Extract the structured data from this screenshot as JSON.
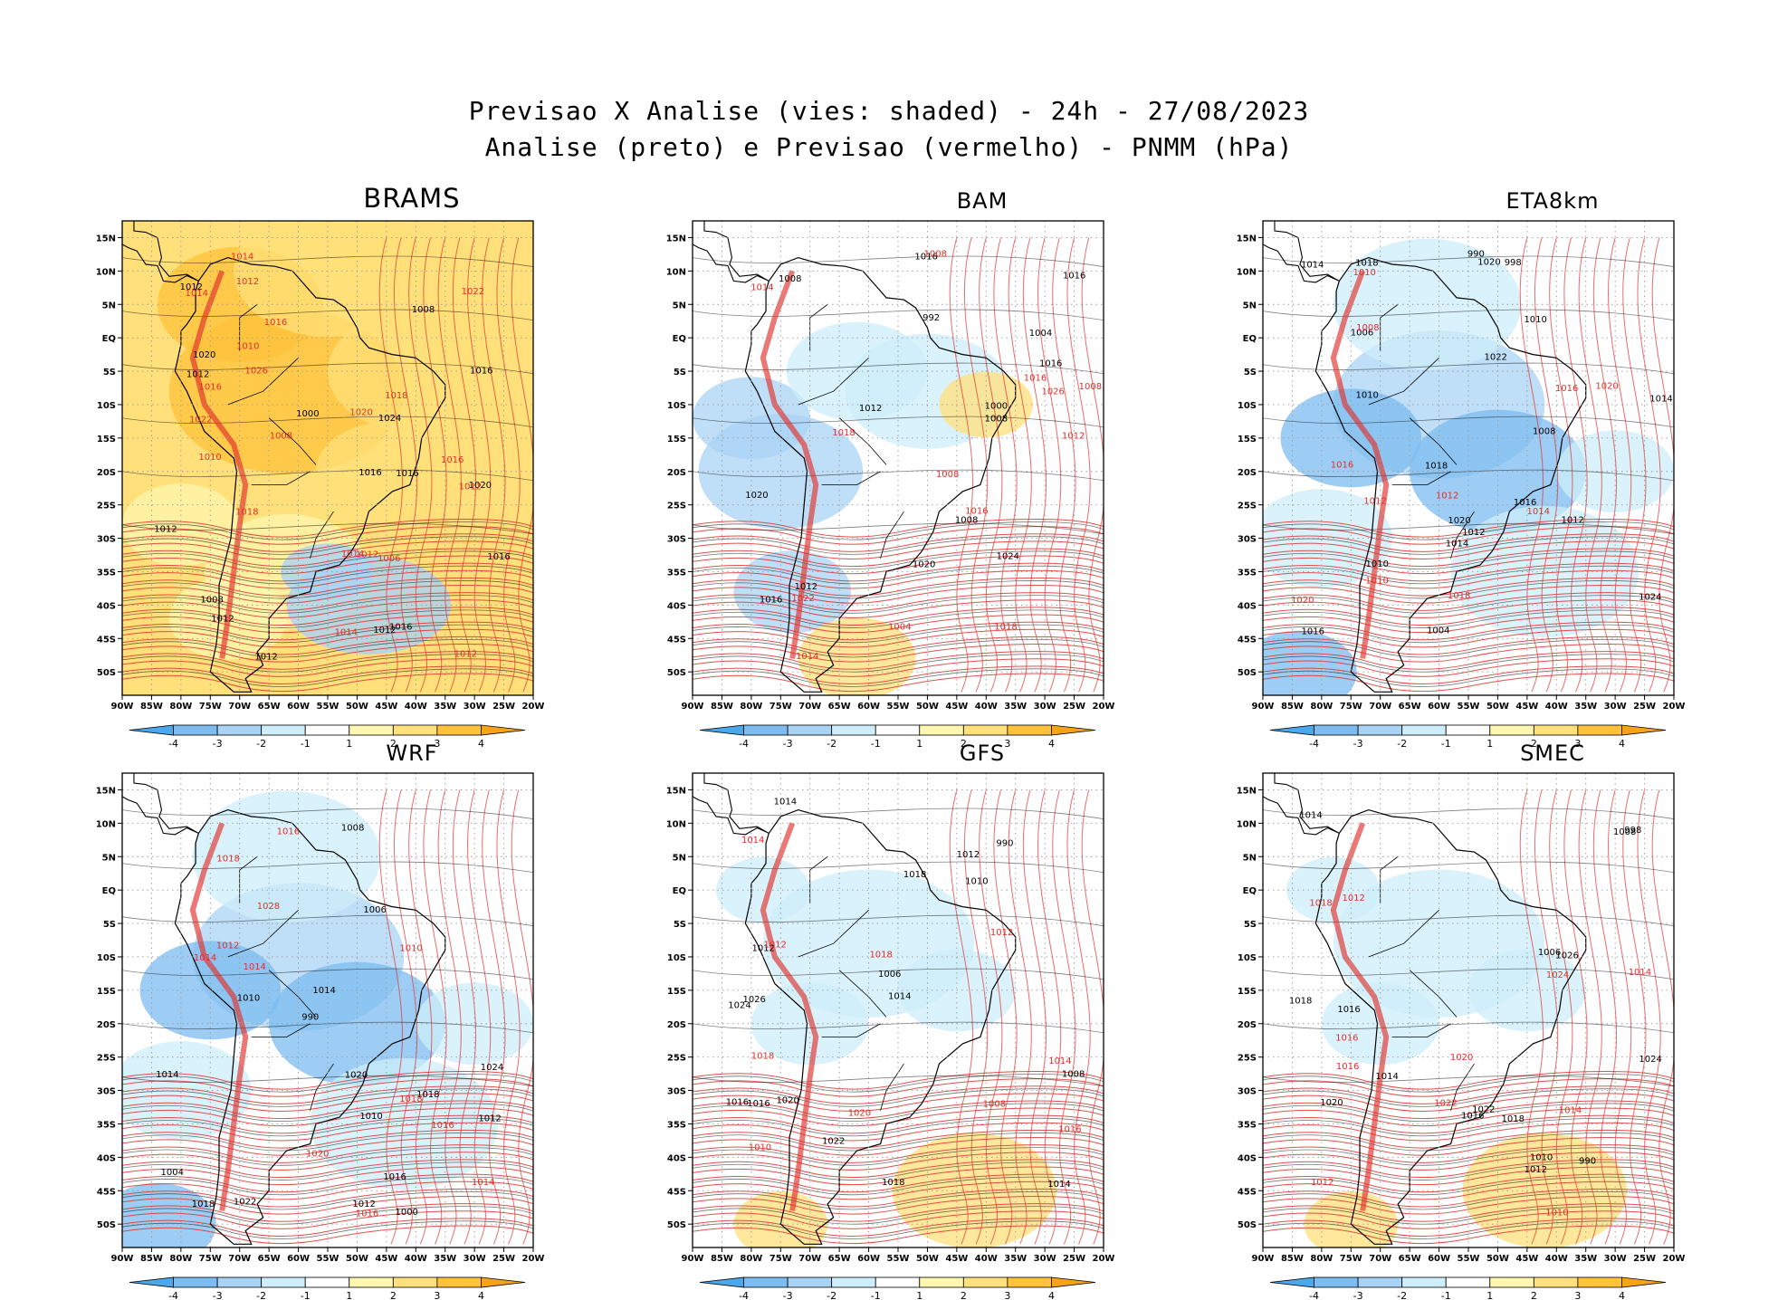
{
  "header": {
    "title_line1": "Previsao X Analise (vies: shaded) - 24h - 27/08/2023",
    "title_line2": "Analise (preto) e Previsao (vermelho) - PNMM (hPa)"
  },
  "axes": {
    "lat_labels": [
      "15N",
      "10N",
      "5N",
      "EQ",
      "5S",
      "10S",
      "15S",
      "20S",
      "25S",
      "30S",
      "35S",
      "40S",
      "45S",
      "50S"
    ],
    "lon_labels": [
      "90W",
      "85W",
      "80W",
      "75W",
      "70W",
      "65W",
      "60W",
      "55W",
      "50W",
      "45W",
      "40W",
      "35W",
      "30W",
      "25W",
      "20W"
    ]
  },
  "colorbar": {
    "labels": [
      "-4",
      "-3",
      "-2",
      "-1",
      "1",
      "2",
      "3",
      "4"
    ],
    "colors": [
      "#4aa8ec",
      "#7cbcf0",
      "#a9d3f5",
      "#cdeefa",
      "#ffffff",
      "#fff7b0",
      "#ffe07a",
      "#ffc23a",
      "#f7a318"
    ]
  },
  "colors": {
    "analysis_contour": "#000000",
    "forecast_contour": "#e0302a",
    "grid": "#9a9a9a"
  },
  "panels": [
    {
      "model": "BRAMS",
      "bias_tone": "warm",
      "black_labels": [
        "1012",
        "1012",
        "1008",
        "1012",
        "1016",
        "1020",
        "1020",
        "1016",
        "1024",
        "1016",
        "1012",
        "1008",
        "1000",
        "1012",
        "1016",
        "1012",
        "1016"
      ],
      "red_labels": [
        "1014",
        "1014",
        "1012",
        "1010",
        "1012",
        "1012",
        "1014",
        "1016",
        "1022",
        "1020",
        "1018",
        "1026",
        "1022",
        "1018",
        "1016",
        "1014",
        "1010",
        "1008",
        "1006",
        "1012",
        "1016"
      ]
    },
    {
      "model": "BAM",
      "bias_tone": "mixed",
      "black_labels": [
        "1008",
        "1008",
        "1012",
        "1016",
        "1020",
        "1020",
        "1016",
        "1024",
        "1012",
        "1008",
        "1016",
        "1004",
        "1000",
        "992",
        "1016"
      ],
      "red_labels": [
        "1014",
        "1008",
        "1008",
        "1014",
        "1018",
        "1022",
        "1026",
        "1016",
        "1018",
        "1008",
        "1004",
        "1012",
        "1016"
      ]
    },
    {
      "model": "ETA8km",
      "bias_tone": "cool",
      "black_labels": [
        "1014",
        "1010",
        "1008",
        "1012",
        "1014",
        "1016",
        "1018",
        "1020",
        "1024",
        "1022",
        "1018",
        "1014",
        "1010",
        "1006",
        "1004",
        "998",
        "990",
        "1012",
        "1016",
        "1020",
        "1010"
      ],
      "red_labels": [
        "1008",
        "1012",
        "1012",
        "1010",
        "1016",
        "1020",
        "1018",
        "1014",
        "1010",
        "1020",
        "1016"
      ]
    },
    {
      "model": "WRF",
      "bias_tone": "cool",
      "black_labels": [
        "1014",
        "1010",
        "1012",
        "1014",
        "1016",
        "1018",
        "1020",
        "1022",
        "1024",
        "1018",
        "1012",
        "1010",
        "1008",
        "1004",
        "1000",
        "990",
        "1006"
      ],
      "red_labels": [
        "1016",
        "1014",
        "1014",
        "1016",
        "1018",
        "1020",
        "1028",
        "1018",
        "1014",
        "1016",
        "1012",
        "1010"
      ]
    },
    {
      "model": "GFS",
      "bias_tone": "light",
      "black_labels": [
        "1014",
        "1008",
        "1010",
        "1012",
        "1014",
        "1016",
        "1018",
        "1020",
        "1022",
        "1024",
        "1026",
        "1012",
        "1014",
        "1006",
        "990",
        "1016",
        "1018"
      ],
      "red_labels": [
        "1008",
        "1012",
        "1014",
        "1020",
        "1018",
        "1016",
        "1014",
        "1010",
        "1012",
        "1018"
      ]
    },
    {
      "model": "SMEC",
      "bias_tone": "light",
      "black_labels": [
        "1014",
        "1008",
        "1010",
        "1012",
        "1014",
        "1016",
        "1018",
        "1020",
        "1022",
        "1024",
        "1026",
        "1018",
        "998",
        "1006",
        "990",
        "1016"
      ],
      "red_labels": [
        "1014",
        "1012",
        "1010",
        "1016",
        "1018",
        "1020",
        "1022",
        "1024",
        "1014",
        "1016",
        "1012"
      ]
    }
  ]
}
